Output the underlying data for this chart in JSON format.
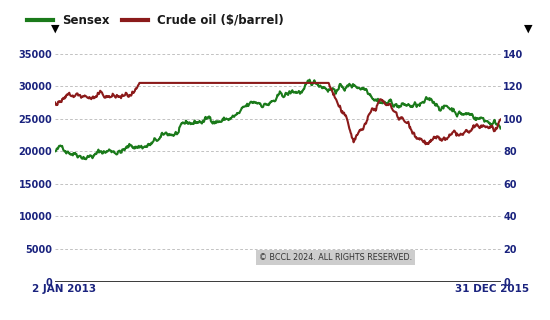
{
  "sensex_label": "Sensex",
  "crude_label": "Crude oil ($/barrel)",
  "x_start_label": "2 JAN 2013",
  "x_end_label": "31 DEC 2015",
  "sensex_color": "#1a7a1a",
  "crude_color": "#8b1a1a",
  "left_ylim": [
    0,
    37333
  ],
  "right_ylim": [
    0,
    149.33
  ],
  "left_yticks": [
    0,
    5000,
    10000,
    15000,
    20000,
    25000,
    30000,
    35000
  ],
  "right_yticks": [
    0,
    20,
    40,
    60,
    80,
    100,
    120,
    140
  ],
  "tick_color": "#1a237e",
  "background_color": "#ffffff",
  "grid_color": "#aaaaaa",
  "copyright_text": "© BCCL 2024. ALL RIGHTS RESERVED.",
  "n_points": 750,
  "figsize": [
    5.5,
    3.2
  ],
  "dpi": 100
}
